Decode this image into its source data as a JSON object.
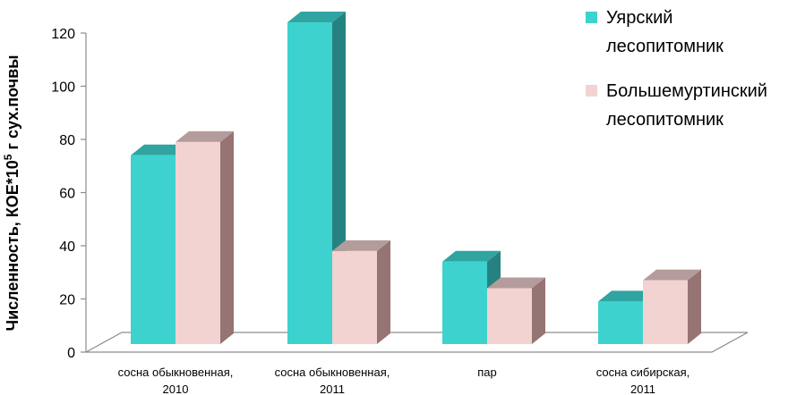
{
  "chart_data": {
    "type": "bar",
    "style": "3d-clustered-column",
    "ylabel": "Численность, КОЕ*10",
    "ylabel_sup": "5",
    "ylabel_suffix": " г сух.почвы",
    "ylim": [
      0,
      120
    ],
    "yticks": [
      "0",
      "20",
      "40",
      "60",
      "80",
      "100",
      "120"
    ],
    "categories": [
      [
        "сосна обыкновенная,",
        "2010"
      ],
      [
        "сосна обыкновенная,",
        "2011"
      ],
      [
        "пар"
      ],
      [
        "сосна сибирская,",
        "2011"
      ]
    ],
    "series": [
      {
        "name": [
          "Уярский",
          "лесопитомник"
        ],
        "values": [
          71,
          121,
          31,
          16
        ],
        "color": "#3ED2CE"
      },
      {
        "name": [
          "Большемуртинский",
          "лесопитомник"
        ],
        "values": [
          76,
          35,
          21,
          24
        ],
        "color": "#F2D3D1"
      }
    ],
    "legend_position": "top-right",
    "grid": false
  }
}
